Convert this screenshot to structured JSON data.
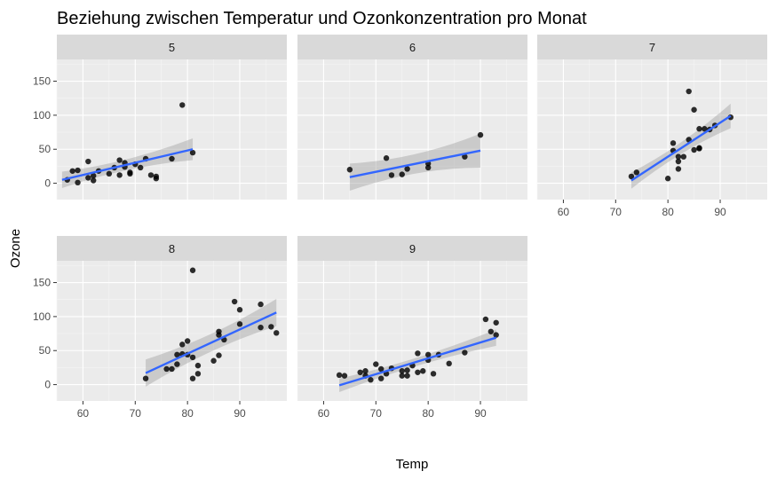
{
  "chart_data": {
    "type": "scatter",
    "title": "Beziehung zwischen Temperatur und Ozonkonzentration pro Monat",
    "xlabel": "Temp",
    "ylabel": "Ozone",
    "xlim": [
      55,
      99
    ],
    "ylim": [
      -24,
      182
    ],
    "x_ticks": [
      60,
      70,
      80,
      90
    ],
    "y_ticks": [
      0,
      50,
      100,
      150
    ],
    "grid": true,
    "facet_by": "Month",
    "facets": [
      {
        "label": "5",
        "points": [
          [
            57,
            5
          ],
          [
            58,
            18
          ],
          [
            59,
            1
          ],
          [
            59,
            19
          ],
          [
            61,
            8
          ],
          [
            61,
            32
          ],
          [
            62,
            11
          ],
          [
            62,
            4
          ],
          [
            63,
            18
          ],
          [
            65,
            14
          ],
          [
            66,
            23
          ],
          [
            67,
            12
          ],
          [
            67,
            34
          ],
          [
            68,
            24
          ],
          [
            68,
            30
          ],
          [
            69,
            14
          ],
          [
            69,
            16
          ],
          [
            70,
            28
          ],
          [
            71,
            23
          ],
          [
            72,
            36
          ],
          [
            73,
            12
          ],
          [
            74,
            7
          ],
          [
            74,
            10
          ],
          [
            77,
            36
          ],
          [
            79,
            115
          ],
          [
            81,
            45
          ]
        ],
        "fit": {
          "x1": 56,
          "y1": 5,
          "x2": 81,
          "y2": 50,
          "ci_start": 12,
          "ci_end": 16
        }
      },
      {
        "label": "6",
        "points": [
          [
            65,
            20
          ],
          [
            72,
            37
          ],
          [
            73,
            12
          ],
          [
            75,
            13
          ],
          [
            76,
            21
          ],
          [
            80,
            29
          ],
          [
            80,
            23
          ],
          [
            87,
            39
          ],
          [
            90,
            71
          ]
        ],
        "fit": {
          "x1": 65,
          "y1": 9,
          "x2": 90,
          "y2": 48,
          "ci_start": 20,
          "ci_end": 25
        }
      },
      {
        "label": "7",
        "points": [
          [
            73,
            10
          ],
          [
            74,
            16
          ],
          [
            80,
            7
          ],
          [
            81,
            59
          ],
          [
            81,
            48
          ],
          [
            82,
            39
          ],
          [
            82,
            32
          ],
          [
            82,
            21
          ],
          [
            83,
            39
          ],
          [
            84,
            135
          ],
          [
            84,
            64
          ],
          [
            85,
            108
          ],
          [
            85,
            49
          ],
          [
            86,
            52
          ],
          [
            86,
            80
          ],
          [
            86,
            51
          ],
          [
            87,
            80
          ],
          [
            88,
            79
          ],
          [
            89,
            85
          ],
          [
            92,
            97
          ]
        ],
        "fit": {
          "x1": 73,
          "y1": 4,
          "x2": 92,
          "y2": 99,
          "ci_start": 12,
          "ci_end": 18
        }
      },
      {
        "label": "8",
        "points": [
          [
            72,
            9
          ],
          [
            76,
            23
          ],
          [
            77,
            23
          ],
          [
            78,
            30
          ],
          [
            78,
            44
          ],
          [
            79,
            45
          ],
          [
            79,
            59
          ],
          [
            80,
            64
          ],
          [
            80,
            44
          ],
          [
            81,
            168
          ],
          [
            81,
            9
          ],
          [
            81,
            40
          ],
          [
            82,
            16
          ],
          [
            82,
            28
          ],
          [
            85,
            35
          ],
          [
            86,
            73
          ],
          [
            86,
            78
          ],
          [
            86,
            43
          ],
          [
            87,
            66
          ],
          [
            89,
            122
          ],
          [
            90,
            110
          ],
          [
            90,
            89
          ],
          [
            94,
            118
          ],
          [
            94,
            84
          ],
          [
            96,
            85
          ],
          [
            97,
            76
          ]
        ],
        "fit": {
          "x1": 72,
          "y1": 17,
          "x2": 97,
          "y2": 106,
          "ci_start": 20,
          "ci_end": 20
        }
      },
      {
        "label": "9",
        "points": [
          [
            63,
            14
          ],
          [
            64,
            13
          ],
          [
            67,
            18
          ],
          [
            68,
            20
          ],
          [
            68,
            13
          ],
          [
            69,
            7
          ],
          [
            70,
            30
          ],
          [
            71,
            23
          ],
          [
            71,
            9
          ],
          [
            72,
            16
          ],
          [
            73,
            24
          ],
          [
            75,
            20
          ],
          [
            75,
            13
          ],
          [
            76,
            13
          ],
          [
            76,
            21
          ],
          [
            77,
            28
          ],
          [
            78,
            46
          ],
          [
            78,
            18
          ],
          [
            79,
            20
          ],
          [
            80,
            44
          ],
          [
            80,
            36
          ],
          [
            81,
            16
          ],
          [
            82,
            44
          ],
          [
            84,
            31
          ],
          [
            87,
            47
          ],
          [
            91,
            96
          ],
          [
            92,
            78
          ],
          [
            93,
            91
          ],
          [
            93,
            73
          ]
        ],
        "fit": {
          "x1": 63,
          "y1": -1,
          "x2": 93,
          "y2": 69,
          "ci_start": 10,
          "ci_end": 12
        }
      }
    ]
  }
}
